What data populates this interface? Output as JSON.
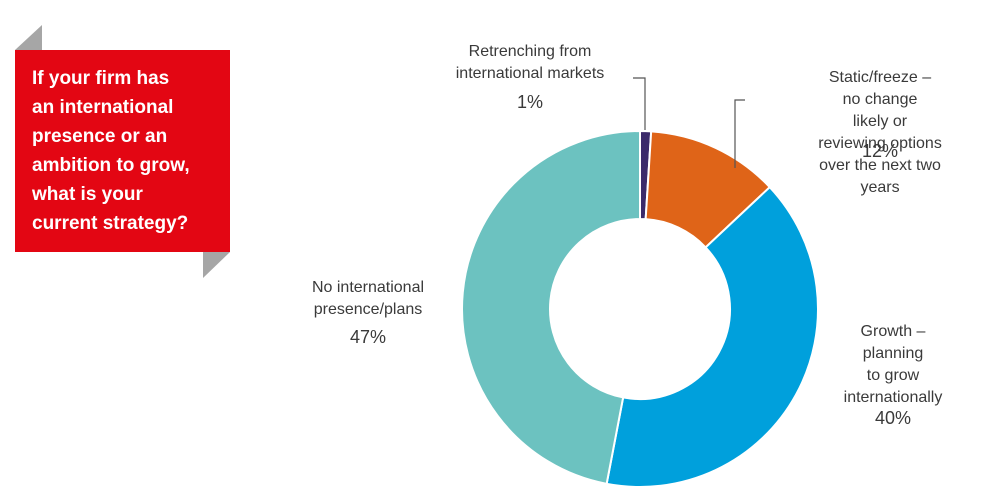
{
  "chart_data": {
    "type": "donut",
    "title": "If your firm has\nan international\npresence or an\nambition to grow,\nwhat is your\ncurrent strategy?",
    "categories": [
      "Retrenching from\ninternational markets",
      "Static/freeze – no change\nlikely or reviewing options\nover the next two years",
      "Growth –\nplanning\nto grow\ninternationally",
      "No international\npresence/plans"
    ],
    "values": [
      1,
      12,
      40,
      47
    ],
    "value_labels": [
      "1%",
      "12%",
      "40%",
      "47%"
    ],
    "colors": [
      "#3b2a6a",
      "#df6418",
      "#00a0dc",
      "#6cc2c0"
    ]
  }
}
